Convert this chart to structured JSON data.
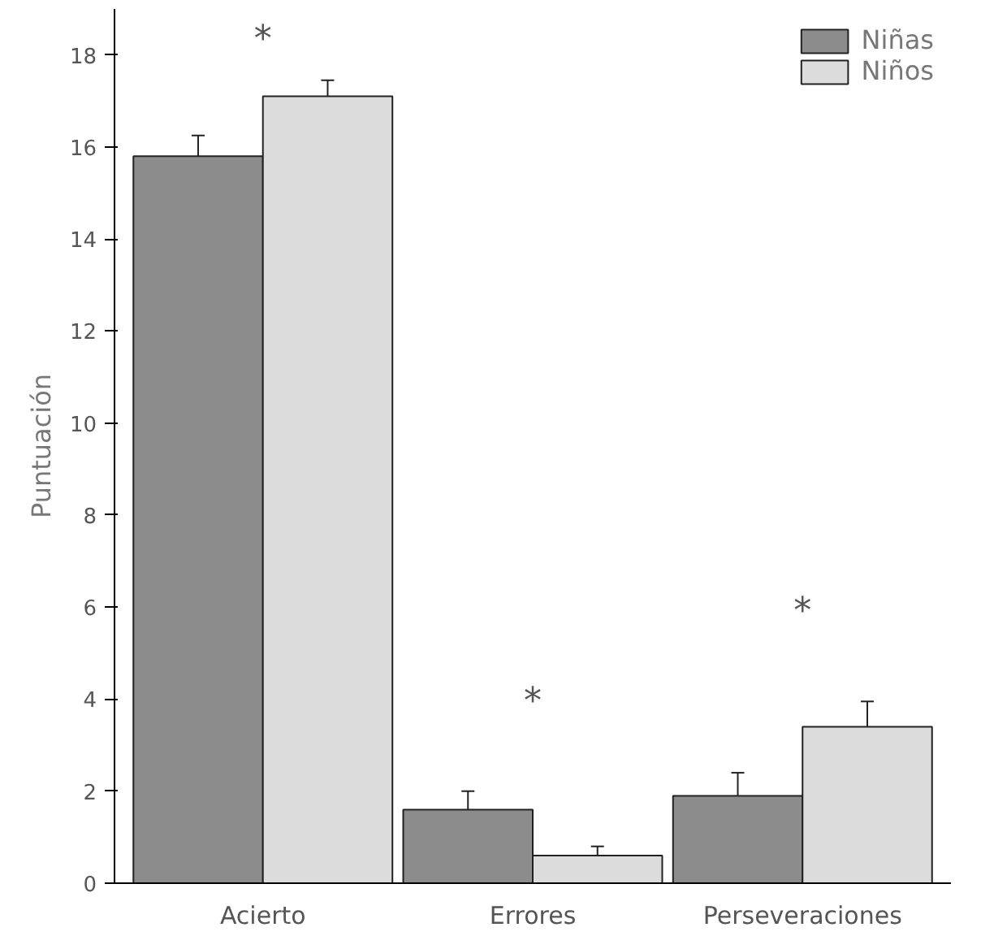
{
  "chart_data": {
    "type": "bar",
    "ylabel": "Puntuación",
    "categories": [
      "Acierto",
      "Errores",
      "Perseveraciones"
    ],
    "series": [
      {
        "name": "Niñas",
        "color": "#8c8c8c",
        "values": [
          15.8,
          1.6,
          1.9
        ],
        "errors": [
          0.45,
          0.4,
          0.5
        ]
      },
      {
        "name": "Niños",
        "color": "#dcdcdc",
        "values": [
          17.1,
          0.6,
          3.4
        ],
        "errors": [
          0.35,
          0.2,
          0.55
        ]
      }
    ],
    "ylim": [
      0,
      19
    ],
    "yticks": [
      0,
      2,
      4,
      6,
      8,
      10,
      12,
      14,
      16,
      18
    ],
    "grid": false,
    "legend": "top right",
    "annotations": [
      "*",
      "*",
      "*"
    ]
  }
}
